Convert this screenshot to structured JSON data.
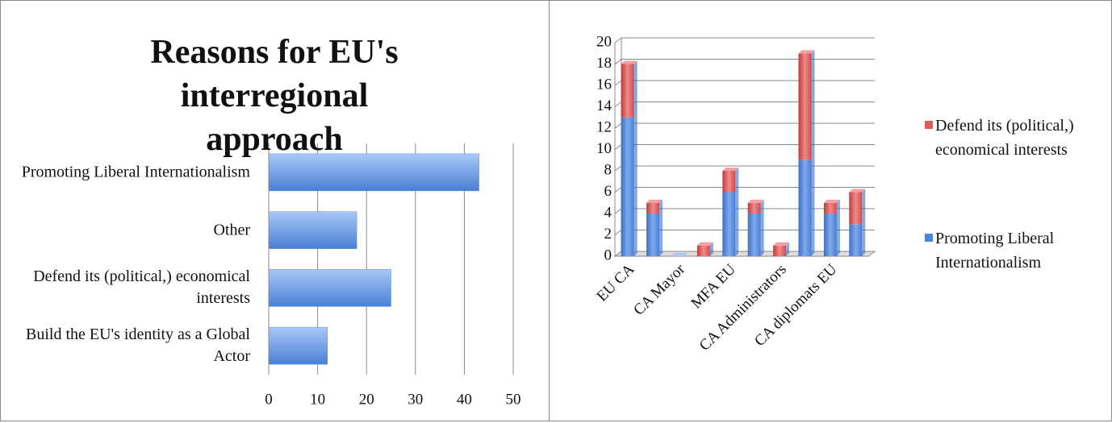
{
  "chart_data": [
    {
      "type": "hbar",
      "title": "Reasons for EU's interregional approach",
      "categories": [
        "Promoting Liberal Internationalism",
        "Other",
        "Defend its (political,) economical interests",
        "Build the EU's identity as a Global Actor"
      ],
      "values": [
        43,
        18,
        25,
        12
      ],
      "color": "#5b8fe0",
      "xlim": [
        0,
        50
      ],
      "xticks": [
        0,
        10,
        20,
        30,
        40,
        50
      ],
      "grid": true
    },
    {
      "type": "stacked-bar",
      "categories": [
        "EU CA",
        null,
        "CA Mayor",
        null,
        "MFA EU",
        null,
        "CA Administrators",
        null,
        "CA diplomats EU",
        null
      ],
      "series": [
        {
          "name": "Promoting Liberal Internationalism",
          "color": "#4f86dc",
          "values": [
            13,
            4,
            0,
            0,
            6,
            4,
            0,
            9,
            4,
            3
          ]
        },
        {
          "name": "Defend its (political,) economical interests",
          "color": "#e05a5a",
          "values": [
            5,
            1,
            0,
            1,
            2,
            1,
            1,
            10,
            1,
            3
          ]
        }
      ],
      "ylim": [
        0,
        20
      ],
      "yticks": [
        0,
        2,
        4,
        6,
        8,
        10,
        12,
        14,
        16,
        18,
        20
      ],
      "grid": true,
      "legend": "right"
    }
  ]
}
